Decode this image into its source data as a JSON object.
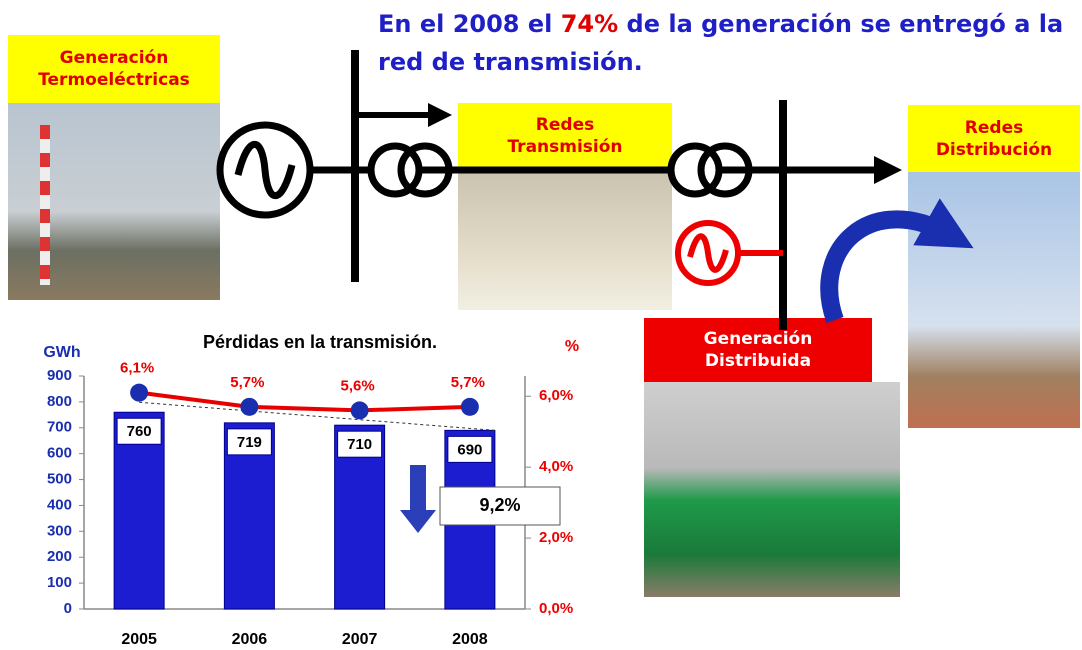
{
  "header": {
    "line1": [
      "En el 2008 el ",
      "74%",
      " de la generación se entregó a la"
    ],
    "line2": "red de transmisión."
  },
  "nodes": [
    {
      "lines": [
        "Generación",
        "Termoeléctricas"
      ]
    },
    {
      "lines": [
        "Redes",
        "Transmisión"
      ]
    },
    {
      "lines": [
        "Redes",
        "Distribución"
      ]
    },
    {
      "lines": [
        "Generación",
        "Distribuida"
      ]
    }
  ],
  "chart_data": {
    "type": "bar",
    "title": "Pérdidas en la transmisión.",
    "y_label": "GWh",
    "y2_label": "%",
    "categories": [
      "2005",
      "2006",
      "2007",
      "2008"
    ],
    "series": [
      {
        "color": "#1c1cd0",
        "values": [
          760,
          719,
          710,
          690
        ]
      },
      {
        "color": "#e80000",
        "axis": "y2",
        "values": [
          6.1,
          5.7,
          5.6,
          5.7
        ],
        "value_labels": [
          "6,1%",
          "5,7%",
          "5,6%",
          "5,7%"
        ]
      }
    ],
    "ylim": [
      0,
      900
    ],
    "yticks": [
      0,
      100,
      200,
      300,
      400,
      500,
      600,
      700,
      800,
      900
    ],
    "y2lim": [
      0,
      6.57
    ],
    "y2ticks": [
      {
        "value": 0,
        "label": "0,0%"
      },
      {
        "value": 2,
        "label": "2,0%"
      },
      {
        "value": 4,
        "label": "4,0%"
      },
      {
        "value": 6,
        "label": "6,0%"
      }
    ],
    "annotation": "9,2%"
  }
}
